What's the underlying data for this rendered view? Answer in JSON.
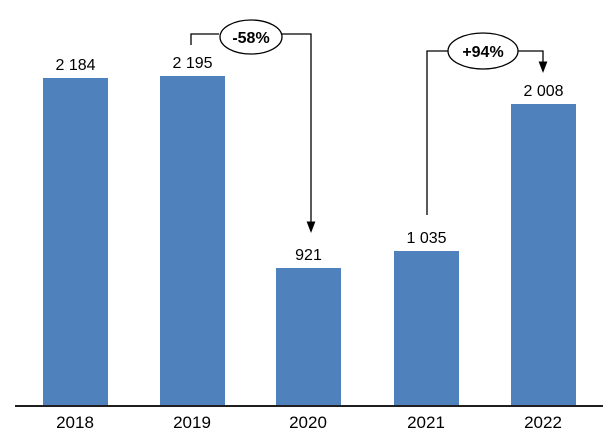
{
  "chart_data": {
    "type": "bar",
    "title": "",
    "xlabel": "",
    "ylabel": "",
    "categories": [
      "2018",
      "2019",
      "2020",
      "2021",
      "2022"
    ],
    "values": [
      2184,
      2195,
      921,
      1035,
      2008
    ],
    "value_labels": [
      "2 184",
      "2 195",
      "921",
      "1 035",
      "2 008"
    ],
    "ylim": [
      0,
      2700
    ],
    "grid": false,
    "legend": false,
    "bar_color": "#4F81BD",
    "axis_color": "#1f1f1f",
    "label_color": "#000000",
    "annotation_stroke_color": "#000000",
    "annotations": [
      {
        "label": "-58%",
        "from_category": "2019",
        "to_category": "2020",
        "shape": "oval-callout-with-down-arrow"
      },
      {
        "label": "+94%",
        "from_category": "2021",
        "to_category": "2022",
        "shape": "oval-callout-with-down-arrow"
      }
    ]
  }
}
